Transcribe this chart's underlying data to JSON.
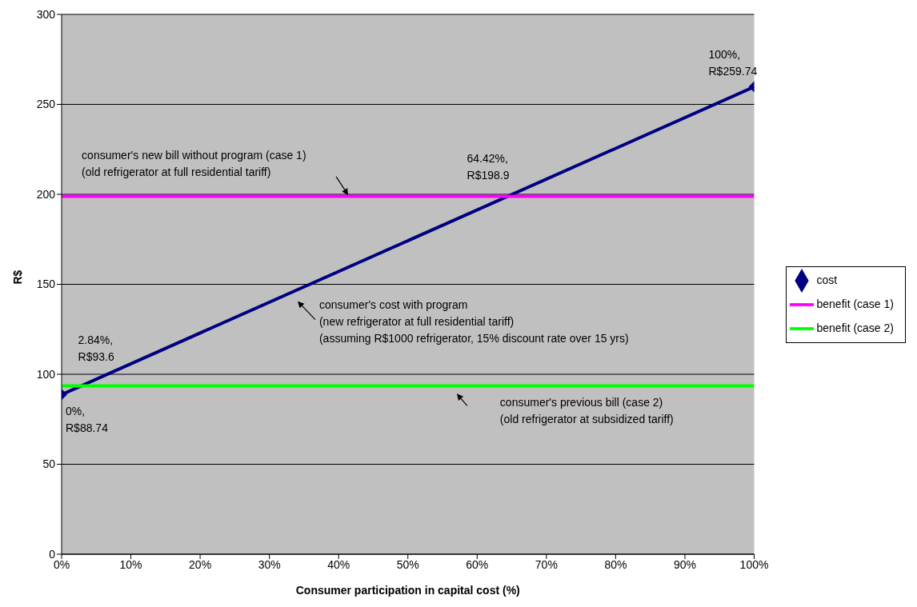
{
  "chart_data": {
    "type": "line",
    "xlabel": "Consumer participation in capital cost (%)",
    "ylabel": "R$",
    "x": [
      0,
      100
    ],
    "series": [
      {
        "name": "cost",
        "color": "#000080",
        "values": [
          88.74,
          259.74
        ],
        "marker": "diamond"
      },
      {
        "name": "benefit (case 1)",
        "color": "#ff00ff",
        "values": [
          198.9,
          198.9
        ],
        "marker": "none"
      },
      {
        "name": "benefit (case 2)",
        "color": "#00ff00",
        "values": [
          93.6,
          93.6
        ],
        "marker": "none"
      }
    ],
    "xlim": [
      0,
      100
    ],
    "xticks": [
      {
        "value": 0,
        "label": "0%"
      },
      {
        "value": 10,
        "label": "10%"
      },
      {
        "value": 20,
        "label": "20%"
      },
      {
        "value": 30,
        "label": "30%"
      },
      {
        "value": 40,
        "label": "40%"
      },
      {
        "value": 50,
        "label": "50%"
      },
      {
        "value": 60,
        "label": "60%"
      },
      {
        "value": 70,
        "label": "70%"
      },
      {
        "value": 80,
        "label": "80%"
      },
      {
        "value": 90,
        "label": "90%"
      },
      {
        "value": 100,
        "label": "100%"
      }
    ],
    "ylim": [
      0,
      300
    ],
    "yticks": [
      0,
      50,
      100,
      150,
      200,
      250,
      300
    ],
    "grid": "y",
    "legend": "right",
    "line_style": "solid",
    "annotations": [
      {
        "text": "0%,\nR$88.74",
        "x": 0,
        "y": 88.74
      },
      {
        "text": "2.84%,\nR$93.6",
        "x": 2.84,
        "y": 93.6
      },
      {
        "text": "64.42%,\nR$198.9",
        "x": 64.42,
        "y": 198.9
      },
      {
        "text": "100%,\nR$259.74",
        "x": 100,
        "y": 259.74
      },
      "consumer's new bill without program (case 1)\n(old refrigerator at full residential tariff)",
      "consumer's cost with program\n(new refrigerator at full residential tariff)\n(assuming R$1000 refrigerator, 15% discount rate over 15 yrs)",
      "consumer's previous bill (case 2)\n(old refrigerator at subsidized tariff)"
    ]
  }
}
